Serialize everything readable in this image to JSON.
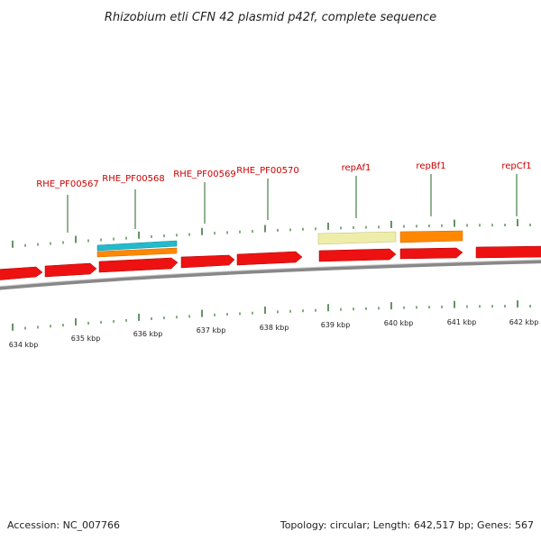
{
  "title": "Rhizobium etli CFN 42 plasmid p42f, complete sequence",
  "footer": {
    "accession": "Accession: NC_007766",
    "summary": "Topology: circular; Length: 642,517 bp; Genes: 567"
  },
  "colors": {
    "gene": "#ee1111",
    "gene_label": "#cc0000",
    "tick": "#226622",
    "backbone": "#888888",
    "feature_cyan": "#22bbcc",
    "feature_orange": "#ff8800",
    "feature_pale": "#eeeeaa"
  },
  "gene_labels": [
    "RHE_PF00567",
    "RHE_PF00568",
    "RHE_PF00569",
    "RHE_PF00570",
    "repAf1",
    "repBf1",
    "repCf1"
  ],
  "kbp_labels": [
    "634 kbp",
    "635 kbp",
    "636 kbp",
    "637 kbp",
    "638 kbp",
    "639 kbp",
    "640 kbp",
    "641 kbp",
    "642 kbp"
  ]
}
